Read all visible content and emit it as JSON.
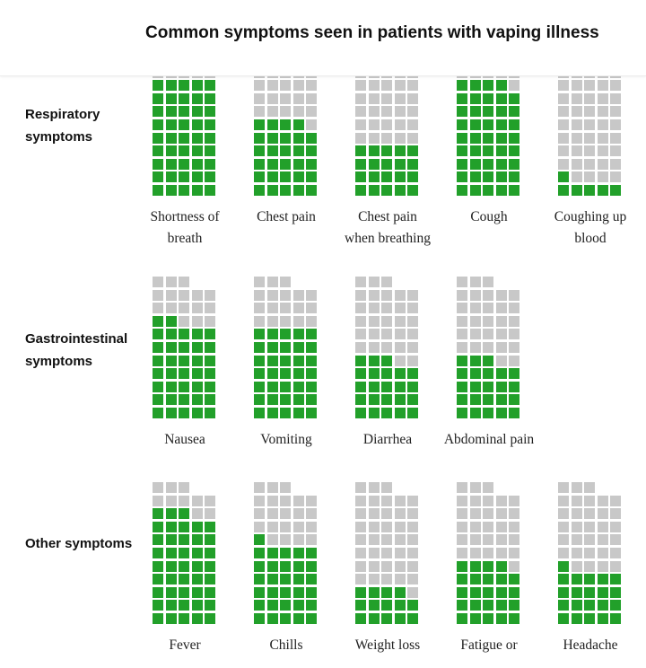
{
  "chart_data": {
    "type": "waffle",
    "title": "Common symptoms seen in patients with vaping illness",
    "total": 53,
    "colors": {
      "has": "#22a02a",
      "not": "#c8c8c8"
    },
    "groups": [
      {
        "name": [
          "Respiratory",
          "symptoms"
        ],
        "symptoms": [
          {
            "label": [
              "Shortness of",
              "breath"
            ],
            "count": 45
          },
          {
            "label": [
              "Chest pain"
            ],
            "count": 29
          },
          {
            "label": [
              "Chest pain",
              "when breathing"
            ],
            "count": 20
          },
          {
            "label": [
              "Cough"
            ],
            "count": 44
          },
          {
            "label": [
              "Coughing up",
              "blood"
            ],
            "count": 6
          }
        ]
      },
      {
        "name": [
          "Gastrointestinal",
          "symptoms"
        ],
        "symptoms": [
          {
            "label": [
              "Nausea"
            ],
            "count": 37
          },
          {
            "label": [
              "Vomiting"
            ],
            "count": 35
          },
          {
            "label": [
              "Diarrhea"
            ],
            "count": 23
          },
          {
            "label": [
              "Abdominal pain"
            ],
            "count": 23
          }
        ]
      },
      {
        "name": [
          "Other symptoms"
        ],
        "symptoms": [
          {
            "label": [
              "Fever"
            ],
            "count": 43
          },
          {
            "label": [
              "Chills"
            ],
            "count": 31
          },
          {
            "label": [
              "Weight loss"
            ],
            "count": 14
          },
          {
            "label": [
              "Fatigue or"
            ],
            "count": 24
          },
          {
            "label": [
              "Headache"
            ],
            "count": 21
          }
        ]
      }
    ]
  }
}
